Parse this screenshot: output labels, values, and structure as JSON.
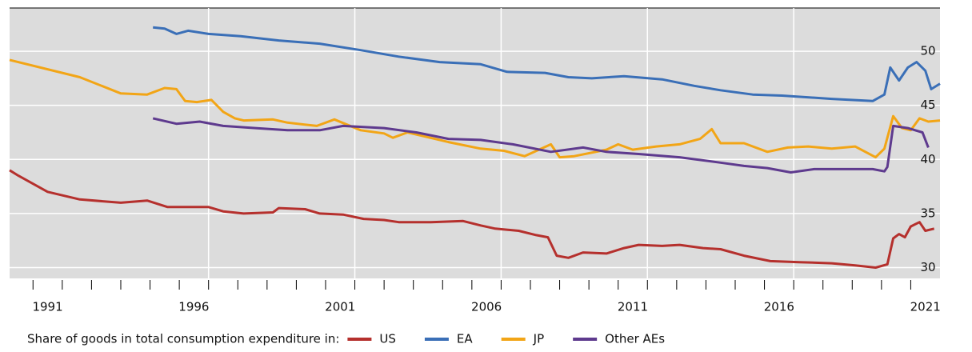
{
  "chart_data": {
    "type": "line",
    "legend_title": "Share of goods in total consumption expenditure in:",
    "legend": "bottom",
    "grid": true,
    "background": "#dcdcdc",
    "xlim": [
      1990.2,
      2022
    ],
    "ylim": [
      29,
      54
    ],
    "yticks": [
      30,
      35,
      40,
      45,
      50
    ],
    "xticks": [
      {
        "value": 1991.5,
        "label": "1991"
      },
      {
        "value": 1996.5,
        "label": "1996"
      },
      {
        "value": 2001.5,
        "label": "2001"
      },
      {
        "value": 2006.5,
        "label": "2006"
      },
      {
        "value": 2011.5,
        "label": "2011"
      },
      {
        "value": 2016.5,
        "label": "2016"
      },
      {
        "value": 2021.5,
        "label": "2021"
      }
    ],
    "xtick_marks": [
      1991,
      1992,
      1993,
      1994,
      1995,
      1996,
      1997,
      1998,
      1999,
      2000,
      2001,
      2002,
      2003,
      2004,
      2005,
      2006,
      2007,
      2008,
      2009,
      2010,
      2011,
      2012,
      2013,
      2014,
      2015,
      2016,
      2017,
      2018,
      2019,
      2020,
      2021
    ],
    "xgrid": [
      1997,
      2002,
      2007,
      2012,
      2017
    ],
    "series": [
      {
        "name": "US",
        "color": "#b5302d",
        "x": [
          1990.2,
          1990.5,
          1991.5,
          1992.6,
          1994.0,
          1994.9,
          1995.6,
          1997.0,
          1997.5,
          1998.2,
          1999.2,
          1999.4,
          2000.3,
          2000.8,
          2001.6,
          2002.3,
          2003.0,
          2003.5,
          2004.6,
          2005.7,
          2006.3,
          2006.8,
          2007.6,
          2008.2,
          2008.6,
          2008.9,
          2009.3,
          2009.8,
          2010.6,
          2011.2,
          2011.7,
          2012.5,
          2013.1,
          2013.9,
          2014.5,
          2015.3,
          2016.2,
          2017.2,
          2018.3,
          2019.1,
          2019.8,
          2020.2,
          2020.4,
          2020.6,
          2020.8,
          2021.0,
          2021.3,
          2021.5,
          2021.8
        ],
        "values": [
          39.0,
          38.5,
          37.0,
          36.3,
          36.0,
          36.2,
          35.6,
          35.6,
          35.2,
          35.0,
          35.1,
          35.5,
          35.4,
          35.0,
          34.9,
          34.5,
          34.4,
          34.2,
          34.2,
          34.3,
          33.9,
          33.6,
          33.4,
          33.0,
          32.8,
          31.1,
          30.9,
          31.4,
          31.3,
          31.8,
          32.1,
          32.0,
          32.1,
          31.8,
          31.7,
          31.1,
          30.6,
          30.5,
          30.4,
          30.2,
          30.0,
          30.3,
          32.7,
          33.1,
          32.8,
          33.8,
          34.2,
          33.4,
          33.6
        ]
      },
      {
        "name": "EA",
        "color": "#3a6fb7",
        "x": [
          1995.1,
          1995.5,
          1995.9,
          1996.3,
          1997.0,
          1998.1,
          1999.4,
          2000.8,
          2002.2,
          2003.5,
          2004.9,
          2006.3,
          2007.2,
          2008.5,
          2009.3,
          2010.1,
          2011.2,
          2012.5,
          2013.6,
          2014.5,
          2015.6,
          2016.6,
          2018.3,
          2019.7,
          2020.1,
          2020.3,
          2020.6,
          2020.9,
          2021.2,
          2021.5,
          2021.7,
          2022.0
        ],
        "values": [
          52.2,
          52.1,
          51.6,
          51.9,
          51.6,
          51.4,
          51.0,
          50.7,
          50.1,
          49.5,
          49.0,
          48.8,
          48.1,
          48.0,
          47.6,
          47.5,
          47.7,
          47.4,
          46.8,
          46.4,
          46.0,
          45.9,
          45.6,
          45.4,
          46.0,
          48.5,
          47.3,
          48.5,
          49.0,
          48.2,
          46.5,
          47.0
        ]
      },
      {
        "name": "JP",
        "color": "#f2a516",
        "x": [
          1990.2,
          1992.6,
          1994.0,
          1994.9,
          1995.5,
          1995.9,
          1996.2,
          1996.6,
          1997.1,
          1997.5,
          1997.9,
          1998.2,
          1999.2,
          1999.7,
          2000.7,
          2001.3,
          2002.2,
          2003.0,
          2003.3,
          2003.8,
          2005.2,
          2006.3,
          2007.1,
          2007.8,
          2008.7,
          2009.0,
          2009.5,
          2010.6,
          2011.0,
          2011.5,
          2012.3,
          2013.1,
          2013.8,
          2014.2,
          2014.5,
          2015.3,
          2016.1,
          2016.8,
          2017.5,
          2018.3,
          2019.1,
          2019.8,
          2020.1,
          2020.4,
          2020.7,
          2021.0,
          2021.3,
          2021.6,
          2022.0
        ],
        "values": [
          49.2,
          47.6,
          46.1,
          46.0,
          46.6,
          46.5,
          45.4,
          45.3,
          45.5,
          44.4,
          43.8,
          43.6,
          43.7,
          43.4,
          43.1,
          43.7,
          42.7,
          42.4,
          42.0,
          42.5,
          41.6,
          41.0,
          40.8,
          40.3,
          41.4,
          40.2,
          40.3,
          40.9,
          41.4,
          40.9,
          41.2,
          41.4,
          41.9,
          42.8,
          41.5,
          41.5,
          40.7,
          41.1,
          41.2,
          41.0,
          41.2,
          40.2,
          41.0,
          44.0,
          42.9,
          42.7,
          43.8,
          43.5,
          43.6
        ]
      },
      {
        "name": "Other AEs",
        "color": "#5e3a8e",
        "x": [
          1995.1,
          1995.9,
          1996.7,
          1997.5,
          1998.6,
          1999.7,
          2000.8,
          2001.6,
          2003.0,
          2004.1,
          2005.2,
          2006.3,
          2007.4,
          2008.7,
          2009.8,
          2010.6,
          2011.7,
          2013.1,
          2014.5,
          2015.3,
          2016.1,
          2016.9,
          2017.7,
          2018.8,
          2019.7,
          2020.1,
          2020.2,
          2020.4,
          2020.9,
          2021.4,
          2021.6
        ],
        "values": [
          43.8,
          43.3,
          43.5,
          43.1,
          42.9,
          42.7,
          42.7,
          43.1,
          42.9,
          42.5,
          41.9,
          41.8,
          41.4,
          40.7,
          41.1,
          40.7,
          40.5,
          40.2,
          39.7,
          39.4,
          39.2,
          38.8,
          39.1,
          39.1,
          39.1,
          38.9,
          39.3,
          43.1,
          42.9,
          42.5,
          41.1
        ]
      }
    ]
  }
}
